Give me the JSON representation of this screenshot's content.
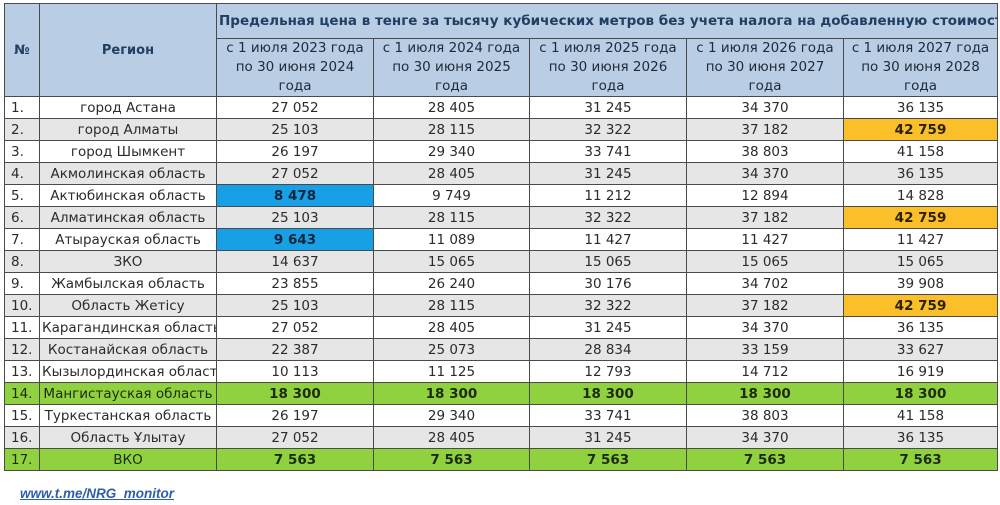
{
  "header": {
    "num_label": "№",
    "region_label": "Регион",
    "caption": "Предельная цена в тенге за тысячу кубических метров без учета налога на добавленную стоимость",
    "periods": [
      "с 1 июля 2023 года по 30 июня 2024 года",
      "с 1 июля 2024 года по 30 июня 2025 года",
      "с 1 июля 2025 года по 30 июня 2026 года",
      "с 1 июля 2026 года по 30 июня 2027 года",
      "с 1 июля 2027 года по 30 июня 2028 года"
    ]
  },
  "rows": [
    {
      "num": "1.",
      "region": "город Астана",
      "values": [
        "27 052",
        "28 405",
        "31 245",
        "34 370",
        "36 135"
      ]
    },
    {
      "num": "2.",
      "region": "город Алматы",
      "values": [
        "25 103",
        "28 115",
        "32 322",
        "37 182",
        "42 759"
      ]
    },
    {
      "num": "3.",
      "region": "город Шымкент",
      "values": [
        "26 197",
        "29 340",
        "33 741",
        "38 803",
        "41 158"
      ]
    },
    {
      "num": "4.",
      "region": "Акмолинская область",
      "values": [
        "27 052",
        "28 405",
        "31 245",
        "34 370",
        "36 135"
      ]
    },
    {
      "num": "5.",
      "region": "Актюбинская область",
      "values": [
        "8 478",
        "9 749",
        "11 212",
        "12 894",
        "14 828"
      ]
    },
    {
      "num": "6.",
      "region": "Алматинская область",
      "values": [
        "25 103",
        "28 115",
        "32 322",
        "37 182",
        "42 759"
      ]
    },
    {
      "num": "7.",
      "region": "Атырауская область",
      "values": [
        "9 643",
        "11 089",
        "11 427",
        "11 427",
        "11 427"
      ]
    },
    {
      "num": "8.",
      "region": "ЗКО",
      "values": [
        "14 637",
        "15 065",
        "15 065",
        "15 065",
        "15 065"
      ]
    },
    {
      "num": "9.",
      "region": "Жамбылская область",
      "values": [
        "23 855",
        "26 240",
        "30 176",
        "34 702",
        "39 908"
      ]
    },
    {
      "num": "10.",
      "region": "Область Жетісу",
      "values": [
        "25 103",
        "28 115",
        "32 322",
        "37 182",
        "42 759"
      ]
    },
    {
      "num": "11.",
      "region": "Карагандинская область",
      "values": [
        "27 052",
        "28 405",
        "31 245",
        "34 370",
        "36 135"
      ]
    },
    {
      "num": "12.",
      "region": "Костанайская область",
      "values": [
        "22 387",
        "25 073",
        "28 834",
        "33 159",
        "33 627"
      ]
    },
    {
      "num": "13.",
      "region": "Кызылординская область",
      "values": [
        "10 113",
        "11 125",
        "12 793",
        "14 712",
        "16 919"
      ]
    },
    {
      "num": "14.",
      "region": "Мангистауская область",
      "values": [
        "18 300",
        "18 300",
        "18 300",
        "18 300",
        "18 300"
      ]
    },
    {
      "num": "15.",
      "region": "Туркестанская область",
      "values": [
        "26 197",
        "29 340",
        "33 741",
        "38 803",
        "41 158"
      ]
    },
    {
      "num": "16.",
      "region": "Область Ұлытау",
      "values": [
        "27 052",
        "28 405",
        "31 245",
        "34 370",
        "36 135"
      ]
    },
    {
      "num": "17.",
      "region": "ВКО",
      "values": [
        "7 563",
        "7 563",
        "7 563",
        "7 563",
        "7 563"
      ]
    }
  ],
  "colors": {
    "header_bg": "#b9cde5",
    "row_alt_bg": "#e6e6e6",
    "highlight_blue": "#17a0e6",
    "highlight_orange": "#fbbf2a",
    "highlight_green": "#8fd13f",
    "link": "#2f5fa8"
  },
  "footer": {
    "link_text": "www.t.me/NRG_monitor"
  }
}
